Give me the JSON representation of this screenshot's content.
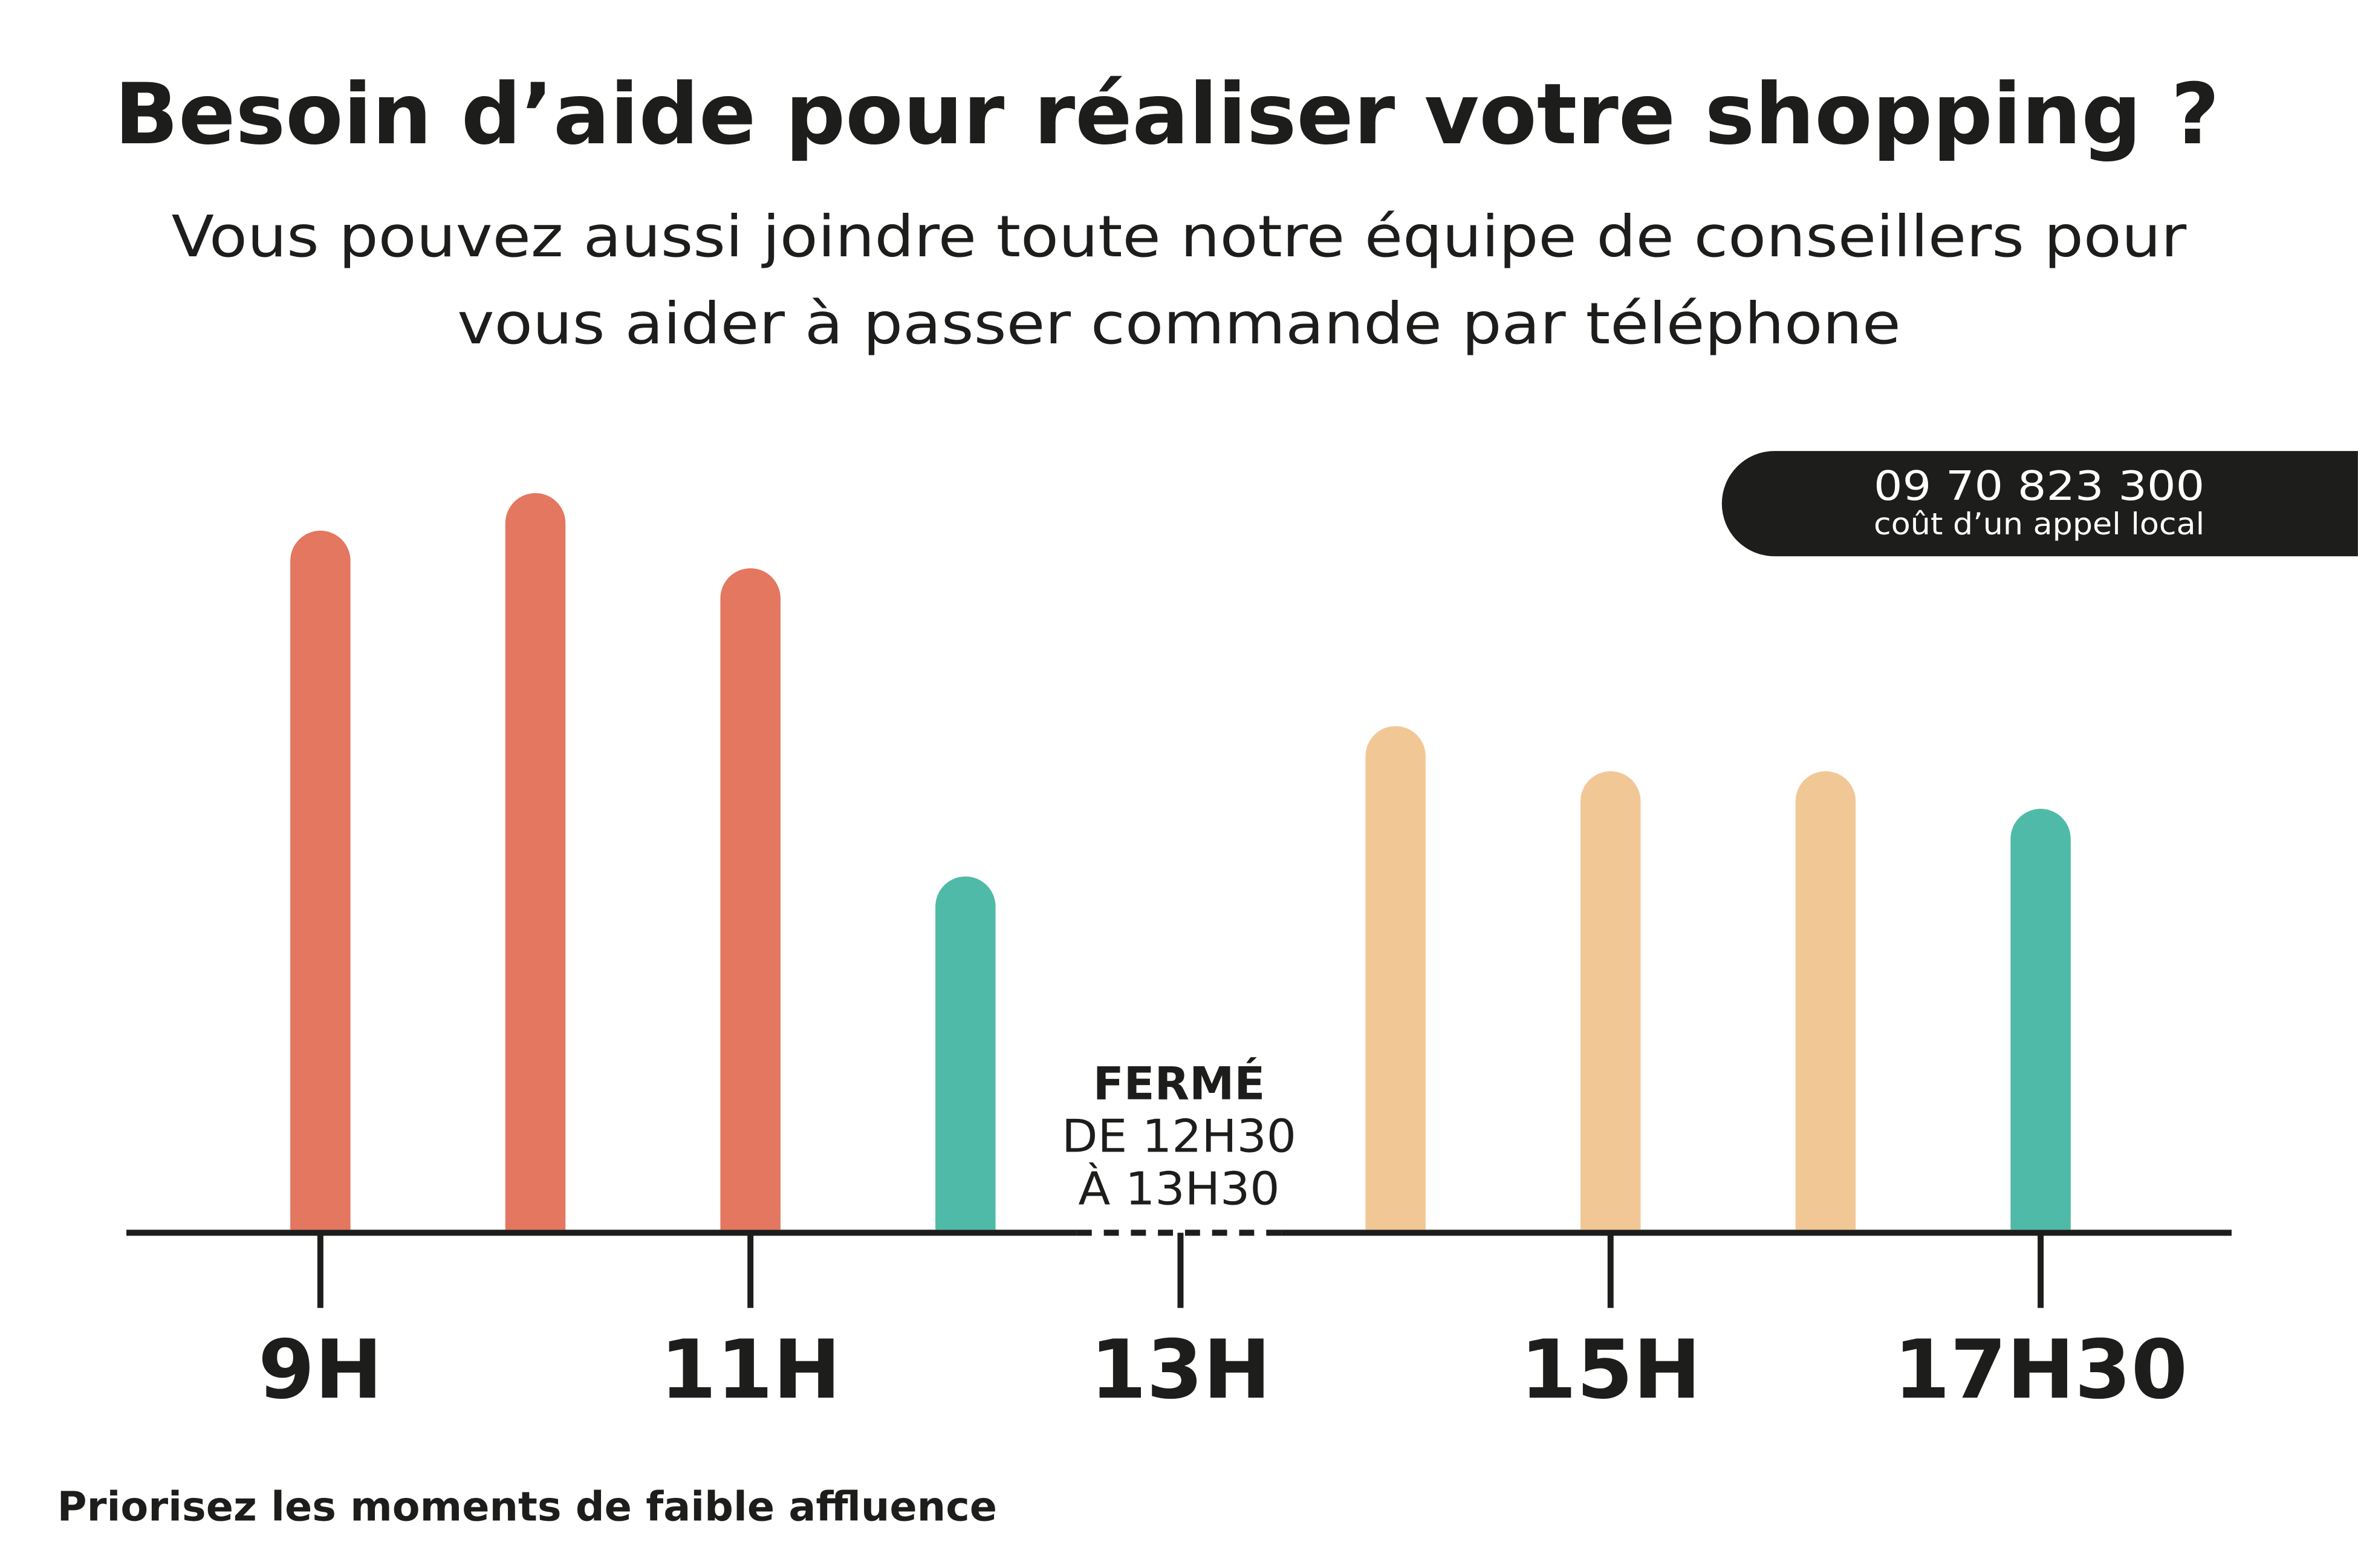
{
  "chart_data": {
    "type": "bar",
    "title": "Besoin d’aide pour réaliser votre shopping ?",
    "subtitle": [
      "Vous pouvez aussi joindre toute notre équipe de conseillers pour",
      "vous aider à passer commande par téléphone"
    ],
    "phone": {
      "number": "09 70 823 300",
      "note": "coût d’un appel local"
    },
    "closed_note": [
      "FERMÉ",
      "DE 12H30",
      "À 13H30"
    ],
    "footnote": "Priorisez les moments de faible affluence",
    "categories": [
      "9H",
      null,
      "11H",
      null,
      "13H",
      null,
      "15H",
      null,
      "17H30"
    ],
    "values": [
      93,
      98,
      88,
      47,
      null,
      67,
      61,
      61,
      56
    ],
    "colors": [
      "#e3775f",
      "#e3775f",
      "#e3775f",
      "#4fbaa8",
      null,
      "#f2c796",
      "#f2c796",
      "#f2c796",
      "#4fbaa8"
    ],
    "ylim": [
      0,
      100
    ]
  }
}
